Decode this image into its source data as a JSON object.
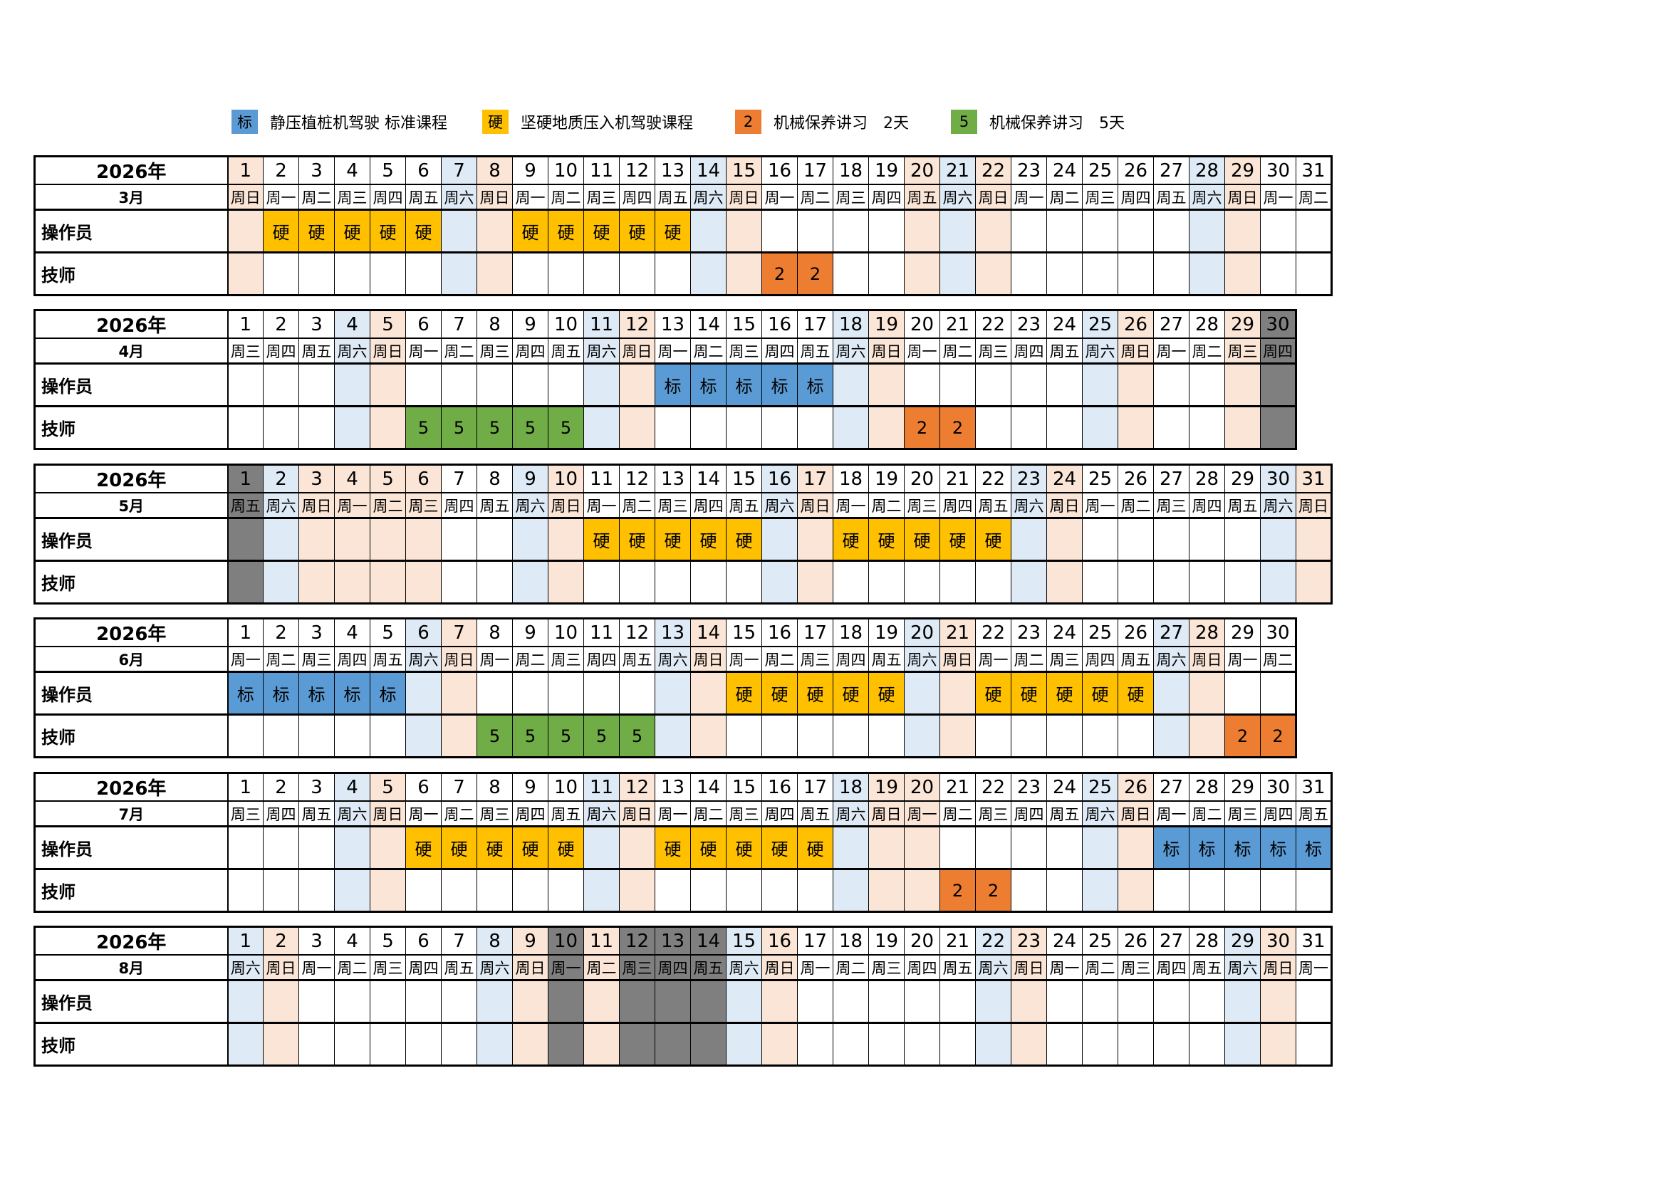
{
  "year": "2026年",
  "row_labels": {
    "operator": "操作员",
    "technician": "技师"
  },
  "day_numbers": [
    1,
    2,
    3,
    4,
    5,
    6,
    7,
    8,
    9,
    10,
    11,
    12,
    13,
    14,
    15,
    16,
    17,
    18,
    19,
    20,
    21,
    22,
    23,
    24,
    25,
    26,
    27,
    28,
    29,
    30,
    31
  ],
  "colors": {
    "saturday": "#DEEAF6",
    "sunday_holiday": "#FBE5D6",
    "closed_gray": "#7F7F7F",
    "course_standard": "#5B9BD5",
    "course_hard": "#FFC000",
    "course_maint2": "#ED7D31",
    "course_maint5": "#70AD47"
  },
  "legend": {
    "items": [
      {
        "key": "标",
        "color": "#5B9BD5",
        "label": "静压植桩机驾驶 标准课程"
      },
      {
        "key": "硬",
        "color": "#FFC000",
        "label": "坚硬地质压入机驾驶课程"
      },
      {
        "key": "2",
        "color": "#ED7D31",
        "label": "机械保养讲习　2天"
      },
      {
        "key": "5",
        "color": "#70AD47",
        "label": "机械保养讲习　5天"
      }
    ]
  },
  "course_colors": {
    "标": "#5B9BD5",
    "硬": "#FFC000",
    "2": "#ED7D31",
    "5": "#70AD47"
  },
  "months": [
    {
      "name": "3月",
      "days": 31,
      "weekdays": [
        "周日",
        "周一",
        "周二",
        "周三",
        "周四",
        "周五",
        "周六",
        "周日",
        "周一",
        "周二",
        "周三",
        "周四",
        "周五",
        "周六",
        "周日",
        "周一",
        "周二",
        "周三",
        "周四",
        "周五",
        "周六",
        "周日",
        "周一",
        "周二",
        "周三",
        "周四",
        "周五",
        "周六",
        "周日",
        "周一",
        "周二"
      ],
      "sat_days": [
        7,
        14,
        21,
        28
      ],
      "sun_days": [
        1,
        8,
        15,
        20,
        22,
        29
      ],
      "gray_days": [],
      "operator": [
        {
          "from": 2,
          "to": 6,
          "code": "硬"
        },
        {
          "from": 9,
          "to": 13,
          "code": "硬"
        }
      ],
      "technician": [
        {
          "from": 16,
          "to": 17,
          "code": "2"
        }
      ]
    },
    {
      "name": "4月",
      "days": 30,
      "weekdays": [
        "周三",
        "周四",
        "周五",
        "周六",
        "周日",
        "周一",
        "周二",
        "周三",
        "周四",
        "周五",
        "周六",
        "周日",
        "周一",
        "周二",
        "周三",
        "周四",
        "周五",
        "周六",
        "周日",
        "周一",
        "周二",
        "周三",
        "周四",
        "周五",
        "周六",
        "周日",
        "周一",
        "周二",
        "周三",
        "周四"
      ],
      "sat_days": [
        4,
        11,
        18,
        25
      ],
      "sun_days": [
        5,
        12,
        19,
        26,
        29
      ],
      "gray_days": [
        30
      ],
      "operator": [
        {
          "from": 13,
          "to": 17,
          "code": "标"
        }
      ],
      "technician": [
        {
          "from": 6,
          "to": 10,
          "code": "5"
        },
        {
          "from": 20,
          "to": 21,
          "code": "2"
        }
      ]
    },
    {
      "name": "5月",
      "days": 31,
      "weekdays": [
        "周五",
        "周六",
        "周日",
        "周一",
        "周二",
        "周三",
        "周四",
        "周五",
        "周六",
        "周日",
        "周一",
        "周二",
        "周三",
        "周四",
        "周五",
        "周六",
        "周日",
        "周一",
        "周二",
        "周三",
        "周四",
        "周五",
        "周六",
        "周日",
        "周一",
        "周二",
        "周三",
        "周四",
        "周五",
        "周六",
        "周日"
      ],
      "sat_days": [
        2,
        9,
        16,
        23,
        30
      ],
      "sun_days": [
        3,
        4,
        5,
        6,
        10,
        17,
        24,
        31
      ],
      "gray_days": [
        1
      ],
      "operator": [
        {
          "from": 11,
          "to": 15,
          "code": "硬"
        },
        {
          "from": 18,
          "to": 22,
          "code": "硬"
        }
      ],
      "technician": []
    },
    {
      "name": "6月",
      "days": 30,
      "weekdays": [
        "周一",
        "周二",
        "周三",
        "周四",
        "周五",
        "周六",
        "周日",
        "周一",
        "周二",
        "周三",
        "周四",
        "周五",
        "周六",
        "周日",
        "周一",
        "周二",
        "周三",
        "周四",
        "周五",
        "周六",
        "周日",
        "周一",
        "周二",
        "周三",
        "周四",
        "周五",
        "周六",
        "周日",
        "周一",
        "周二"
      ],
      "sat_days": [
        6,
        13,
        20,
        27
      ],
      "sun_days": [
        7,
        14,
        21,
        28
      ],
      "gray_days": [],
      "operator": [
        {
          "from": 1,
          "to": 5,
          "code": "标"
        },
        {
          "from": 15,
          "to": 19,
          "code": "硬"
        },
        {
          "from": 22,
          "to": 26,
          "code": "硬"
        }
      ],
      "technician": [
        {
          "from": 8,
          "to": 12,
          "code": "5"
        },
        {
          "from": 29,
          "to": 30,
          "code": "2"
        }
      ]
    },
    {
      "name": "7月",
      "days": 31,
      "weekdays": [
        "周三",
        "周四",
        "周五",
        "周六",
        "周日",
        "周一",
        "周二",
        "周三",
        "周四",
        "周五",
        "周六",
        "周日",
        "周一",
        "周二",
        "周三",
        "周四",
        "周五",
        "周六",
        "周日",
        "周一",
        "周二",
        "周三",
        "周四",
        "周五",
        "周六",
        "周日",
        "周一",
        "周二",
        "周三",
        "周四",
        "周五"
      ],
      "sat_days": [
        4,
        11,
        18,
        25
      ],
      "sun_days": [
        5,
        12,
        19,
        20,
        26
      ],
      "gray_days": [],
      "operator": [
        {
          "from": 6,
          "to": 10,
          "code": "硬"
        },
        {
          "from": 13,
          "to": 17,
          "code": "硬"
        },
        {
          "from": 27,
          "to": 31,
          "code": "标"
        }
      ],
      "technician": [
        {
          "from": 21,
          "to": 22,
          "code": "2"
        }
      ]
    },
    {
      "name": "8月",
      "days": 31,
      "weekdays": [
        "周六",
        "周日",
        "周一",
        "周二",
        "周三",
        "周四",
        "周五",
        "周六",
        "周日",
        "周一",
        "周二",
        "周三",
        "周四",
        "周五",
        "周六",
        "周日",
        "周一",
        "周二",
        "周三",
        "周四",
        "周五",
        "周六",
        "周日",
        "周一",
        "周二",
        "周三",
        "周四",
        "周五",
        "周六",
        "周日",
        "周一"
      ],
      "sat_days": [
        1,
        8,
        15,
        22,
        29
      ],
      "sun_days": [
        2,
        9,
        11,
        16,
        23,
        30
      ],
      "gray_days": [
        10,
        12,
        13,
        14
      ],
      "operator": [],
      "technician": []
    }
  ]
}
